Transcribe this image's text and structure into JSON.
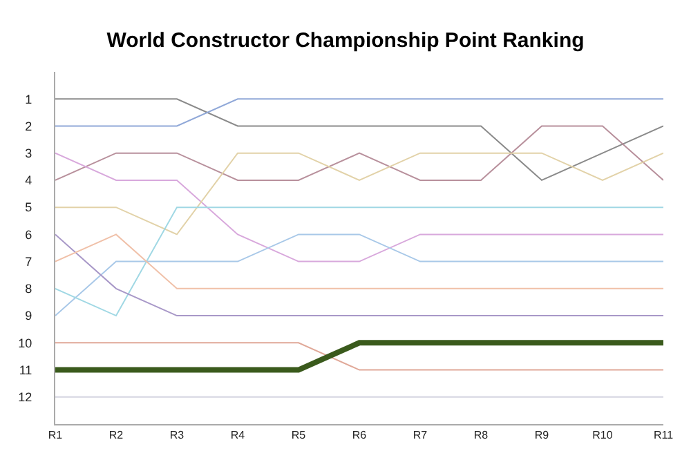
{
  "chart_data": {
    "type": "line",
    "title": "World Constructor Championship Point Ranking",
    "categories": [
      "R1",
      "R2",
      "R3",
      "R4",
      "R5",
      "R6",
      "R7",
      "R8",
      "R9",
      "R10",
      "R11"
    ],
    "ylim": [
      13,
      0
    ],
    "yticks": [
      1,
      2,
      3,
      4,
      5,
      6,
      7,
      8,
      9,
      10,
      11,
      12
    ],
    "grid": false,
    "marker": "none",
    "line_style": "solid",
    "series": [
      {
        "color": "#8a8a8a",
        "values": [
          1,
          1,
          1,
          2,
          2,
          2,
          2,
          2,
          4,
          3,
          2
        ]
      },
      {
        "color": "#90a8d8",
        "values": [
          2,
          2,
          2,
          1,
          1,
          1,
          1,
          1,
          1,
          1,
          1
        ]
      },
      {
        "color": "#b8909c",
        "values": [
          4,
          3,
          3,
          4,
          4,
          3,
          4,
          4,
          2,
          2,
          4
        ]
      },
      {
        "color": "#d8a8dc",
        "values": [
          3,
          4,
          4,
          6,
          7,
          7,
          6,
          6,
          6,
          6,
          6
        ]
      },
      {
        "color": "#e2d2a8",
        "values": [
          5,
          5,
          6,
          3,
          3,
          4,
          3,
          3,
          3,
          4,
          3
        ]
      },
      {
        "color": "#a8c8e8",
        "values": [
          9,
          7,
          7,
          7,
          6,
          6,
          7,
          7,
          7,
          7,
          7
        ]
      },
      {
        "color": "#a0d8e4",
        "values": [
          8,
          9,
          5,
          5,
          5,
          5,
          5,
          5,
          5,
          5,
          5
        ]
      },
      {
        "color": "#a898c8",
        "values": [
          6,
          8,
          9,
          9,
          9,
          9,
          9,
          9,
          9,
          9,
          9
        ]
      },
      {
        "color": "#f0c0a8",
        "values": [
          7,
          6,
          8,
          8,
          8,
          8,
          8,
          8,
          8,
          8,
          8
        ]
      },
      {
        "color": "#e0a898",
        "values": [
          10,
          10,
          10,
          10,
          10,
          11,
          11,
          11,
          11,
          11,
          11
        ]
      },
      {
        "color": "#3a5a1c",
        "values": [
          11,
          11,
          11,
          11,
          11,
          10,
          10,
          10,
          10,
          10,
          10
        ]
      },
      {
        "color": "#d4d4e0",
        "values": [
          12,
          12,
          12,
          12,
          12,
          12,
          12,
          12,
          12,
          12,
          12
        ]
      }
    ]
  }
}
